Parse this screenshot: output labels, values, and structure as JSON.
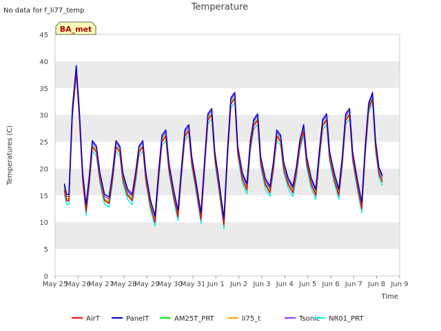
{
  "header": {
    "title": "Temperature",
    "nodata_text": "No data for f_li77_temp",
    "tag_label": "BA_met"
  },
  "colors": {
    "AirT": "#ff0000",
    "PanelT": "#0000cc",
    "AM25T_PRT": "#00ee00",
    "li75_t": "#ffaa00",
    "Tsonic": "#9b30ff",
    "NR01_PRT": "#00eeee",
    "band": "#ebebeb",
    "tag_fill": "#ffffbb",
    "tag_text": "#aa0000"
  },
  "chart_data": {
    "type": "line",
    "title": "Temperature",
    "xlabel": "Time",
    "ylabel": "Temperatures (C)",
    "ylim": [
      0,
      45
    ],
    "yticks": [
      0,
      5,
      10,
      15,
      20,
      25,
      30,
      35,
      40,
      45
    ],
    "xticks": [
      "May 25",
      "May 26",
      "May 27",
      "May 28",
      "May 29",
      "May 30",
      "May 31",
      "Jun 1",
      "Jun 2",
      "Jun 3",
      "Jun 4",
      "Jun 5",
      "Jun 6",
      "Jun 7",
      "Jun 8",
      "Jun 9"
    ],
    "x_day_range": [
      0,
      15
    ],
    "grid": "horizontal bands",
    "legend_position": "bottom",
    "series_names": [
      "AirT",
      "PanelT",
      "AM25T_PRT",
      "li75_t",
      "Tsonic",
      "NR01_PRT"
    ],
    "base_profile": {
      "x_days": [
        0.4,
        0.5,
        0.6,
        0.75,
        0.92,
        1.05,
        1.2,
        1.35,
        1.5,
        1.62,
        1.8,
        1.95,
        2.15,
        2.35,
        2.5,
        2.65,
        2.82,
        2.95,
        3.15,
        3.35,
        3.5,
        3.65,
        3.82,
        3.95,
        4.15,
        4.35,
        4.5,
        4.65,
        4.82,
        4.95,
        5.15,
        5.35,
        5.5,
        5.65,
        5.82,
        5.95,
        6.15,
        6.35,
        6.5,
        6.65,
        6.82,
        6.95,
        7.15,
        7.35,
        7.5,
        7.65,
        7.82,
        7.95,
        8.15,
        8.35,
        8.5,
        8.65,
        8.82,
        8.95,
        9.15,
        9.35,
        9.5,
        9.65,
        9.82,
        9.95,
        10.15,
        10.35,
        10.5,
        10.65,
        10.82,
        10.95,
        11.15,
        11.35,
        11.5,
        11.65,
        11.82,
        11.95,
        12.15,
        12.35,
        12.5,
        12.65,
        12.82,
        12.95,
        13.15,
        13.35,
        13.5,
        13.65,
        13.82,
        13.95,
        14.1,
        14.25
      ],
      "y": [
        16,
        14,
        14,
        30,
        38,
        30,
        18,
        12,
        18,
        24,
        23,
        18,
        14,
        13.5,
        18,
        24,
        23,
        18,
        15,
        14,
        18,
        23,
        24,
        18,
        13,
        10,
        18,
        25,
        26,
        20,
        15,
        11,
        19,
        26,
        27,
        21,
        16,
        10.5,
        20,
        29,
        30,
        22,
        16,
        9.5,
        22,
        32,
        33,
        23,
        18,
        16,
        24,
        28,
        29,
        21,
        17,
        15.5,
        20,
        26,
        25,
        20,
        17,
        15.5,
        19,
        24,
        27,
        21,
        17,
        15,
        22,
        28,
        29,
        22,
        18,
        15,
        21,
        29,
        30,
        22,
        17,
        12.5,
        23,
        31,
        33,
        24,
        19,
        17.5
      ]
    },
    "series": [
      {
        "name": "AirT",
        "offset": 0
      },
      {
        "name": "PanelT",
        "offset": 1.2
      },
      {
        "name": "AM25T_PRT",
        "offset": 0.3
      },
      {
        "name": "li75_t",
        "offset": 0.1
      },
      {
        "name": "Tsonic",
        "offset": 0.8
      },
      {
        "name": "NR01_PRT",
        "offset": -0.7
      }
    ]
  }
}
